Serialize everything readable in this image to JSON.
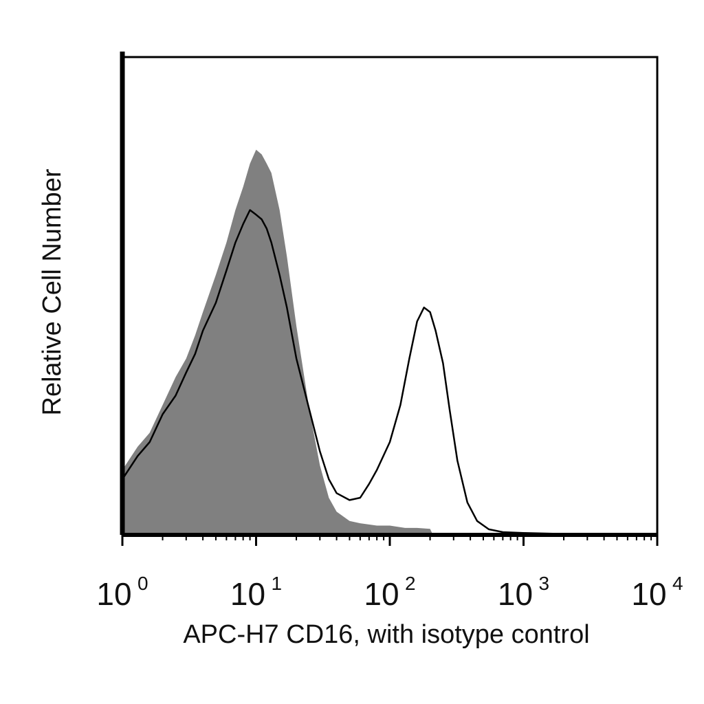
{
  "chart_data": {
    "type": "area",
    "xlabel": "APC-H7 CD16, with isotype control",
    "ylabel": "Relative Cell Number",
    "x_scale": "log",
    "xlim": [
      1,
      10000
    ],
    "ylim": [
      0,
      1
    ],
    "x_ticks": [
      {
        "base": "10",
        "exp": "0",
        "value": 1
      },
      {
        "base": "10",
        "exp": "1",
        "value": 10
      },
      {
        "base": "10",
        "exp": "2",
        "value": 100
      },
      {
        "base": "10",
        "exp": "3",
        "value": 1000
      },
      {
        "base": "10",
        "exp": "4",
        "value": 10000
      }
    ],
    "grid": false,
    "series": [
      {
        "style": "filled",
        "color": "#808080",
        "x": [
          1,
          1.3,
          1.6,
          2,
          2.5,
          3,
          3.5,
          4,
          5,
          6,
          7,
          8,
          9,
          10,
          11,
          12,
          13,
          15,
          17,
          20,
          25,
          30,
          35,
          40,
          50,
          60,
          80,
          100,
          130,
          160,
          200,
          210
        ],
        "y": [
          0.14,
          0.19,
          0.22,
          0.28,
          0.34,
          0.38,
          0.43,
          0.48,
          0.56,
          0.63,
          0.7,
          0.75,
          0.8,
          0.83,
          0.82,
          0.8,
          0.78,
          0.7,
          0.6,
          0.45,
          0.27,
          0.15,
          0.08,
          0.05,
          0.03,
          0.025,
          0.02,
          0.02,
          0.015,
          0.015,
          0.013,
          0.0
        ]
      },
      {
        "style": "outline",
        "color": "#000000",
        "x": [
          1,
          1.3,
          1.6,
          2,
          2.5,
          3,
          3.5,
          4,
          5,
          6,
          7,
          8,
          9,
          10,
          11,
          12,
          13,
          15,
          17,
          20,
          25,
          30,
          35,
          40,
          50,
          60,
          70,
          80,
          100,
          120,
          140,
          160,
          180,
          200,
          220,
          250,
          280,
          320,
          380,
          450,
          550,
          700,
          1000,
          2000,
          5000,
          10000
        ],
        "y": [
          0.12,
          0.17,
          0.2,
          0.26,
          0.3,
          0.35,
          0.39,
          0.44,
          0.5,
          0.57,
          0.63,
          0.67,
          0.7,
          0.69,
          0.68,
          0.66,
          0.63,
          0.56,
          0.49,
          0.38,
          0.27,
          0.18,
          0.12,
          0.09,
          0.075,
          0.08,
          0.11,
          0.14,
          0.2,
          0.28,
          0.38,
          0.46,
          0.49,
          0.48,
          0.44,
          0.37,
          0.27,
          0.16,
          0.07,
          0.03,
          0.012,
          0.006,
          0.004,
          0.002,
          0.001,
          0.0
        ]
      }
    ]
  }
}
